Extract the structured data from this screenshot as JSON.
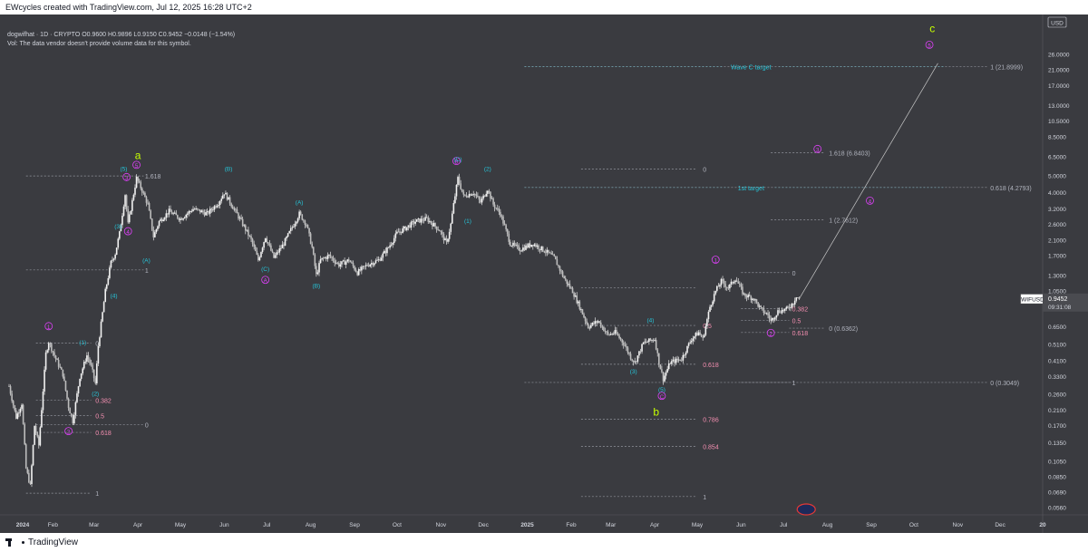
{
  "header": {
    "credit": "EWcycles created with TradingView.com, Jul 12, 2025 16:28 UTC+2"
  },
  "symbol_info": {
    "line1": "dogwifhat · 1D · CRYPTO  O0.9600  H0.9896  L0.9150  C0.9452  −0.0148 (−1.54%)",
    "line2": "Vol: The data vendor doesn't provide volume data for this symbol."
  },
  "footer": {
    "brand": "TradingView"
  },
  "colors": {
    "bg": "#3a3b40",
    "cyan": "#26c6da",
    "magenta": "#e040fb",
    "pink": "#f48fb1",
    "lime": "#c6ff00",
    "fib": "#b0b3bd",
    "candle": "#e6e6e6"
  },
  "chart_data": {
    "type": "candlestick",
    "title": "dogwifhat · 1D · CRYPTO",
    "symbol": "WIFUSD",
    "currency": "USD",
    "y_scale": "log",
    "ylim": [
      0.052,
      34
    ],
    "x_start": "2024-01-01",
    "x_end": "2025-12-31",
    "price_ticks": [
      "26.0000",
      "21.0000",
      "17.0000",
      "13.0000",
      "10.5000",
      "8.5000",
      "6.5000",
      "5.0000",
      "4.0000",
      "3.2000",
      "2.6000",
      "2.1000",
      "1.7000",
      "1.3000",
      "1.0500",
      "0.8500",
      "0.6500",
      "0.5100",
      "0.4100",
      "0.3300",
      "0.2600",
      "0.2100",
      "0.1700",
      "0.1350",
      "0.1050",
      "0.0850",
      "0.0690",
      "0.0560"
    ],
    "x_ticks": [
      {
        "label": "2024",
        "date": "2024-01-01",
        "bold": true
      },
      {
        "label": "Feb",
        "date": "2024-02-01"
      },
      {
        "label": "Mar",
        "date": "2024-03-01"
      },
      {
        "label": "Apr",
        "date": "2024-04-01"
      },
      {
        "label": "May",
        "date": "2024-05-01"
      },
      {
        "label": "Jun",
        "date": "2024-06-01"
      },
      {
        "label": "Jul",
        "date": "2024-07-01"
      },
      {
        "label": "Aug",
        "date": "2024-08-01"
      },
      {
        "label": "Sep",
        "date": "2024-09-01"
      },
      {
        "label": "Oct",
        "date": "2024-10-01"
      },
      {
        "label": "Nov",
        "date": "2024-11-01"
      },
      {
        "label": "Dec",
        "date": "2024-12-01"
      },
      {
        "label": "2025",
        "date": "2025-01-01",
        "bold": true
      },
      {
        "label": "Feb",
        "date": "2025-02-01"
      },
      {
        "label": "Mar",
        "date": "2025-03-01"
      },
      {
        "label": "Apr",
        "date": "2025-04-01"
      },
      {
        "label": "May",
        "date": "2025-05-01"
      },
      {
        "label": "Jun",
        "date": "2025-06-01"
      },
      {
        "label": "Jul",
        "date": "2025-07-01"
      },
      {
        "label": "Aug",
        "date": "2025-08-01"
      },
      {
        "label": "Sep",
        "date": "2025-09-01"
      },
      {
        "label": "Oct",
        "date": "2025-10-01"
      },
      {
        "label": "Nov",
        "date": "2025-11-01"
      },
      {
        "label": "Dec",
        "date": "2025-12-01"
      },
      {
        "label": "20",
        "date": "2025-12-31",
        "bold": true
      }
    ],
    "price_path": [
      [
        "2024-01-01",
        0.29
      ],
      [
        "2024-01-06",
        0.19
      ],
      [
        "2024-01-10",
        0.23
      ],
      [
        "2024-01-13",
        0.095
      ],
      [
        "2024-01-16",
        0.075
      ],
      [
        "2024-01-19",
        0.17
      ],
      [
        "2024-01-22",
        0.13
      ],
      [
        "2024-01-27",
        0.45
      ],
      [
        "2024-01-29",
        0.53
      ],
      [
        "2024-02-03",
        0.42
      ],
      [
        "2024-02-08",
        0.34
      ],
      [
        "2024-02-12",
        0.22
      ],
      [
        "2024-02-15",
        0.18
      ],
      [
        "2024-02-20",
        0.33
      ],
      [
        "2024-02-25",
        0.44
      ],
      [
        "2024-02-28",
        0.38
      ],
      [
        "2024-03-02",
        0.3
      ],
      [
        "2024-03-04",
        0.5
      ],
      [
        "2024-03-09",
        1.05
      ],
      [
        "2024-03-13",
        1.55
      ],
      [
        "2024-03-16",
        1.75
      ],
      [
        "2024-03-19",
        2.3
      ],
      [
        "2024-03-23",
        3.9
      ],
      [
        "2024-03-25",
        2.6
      ],
      [
        "2024-03-31",
        4.85
      ],
      [
        "2024-04-04",
        4.1
      ],
      [
        "2024-04-08",
        3.4
      ],
      [
        "2024-04-12",
        2.2
      ],
      [
        "2024-04-16",
        2.7
      ],
      [
        "2024-04-23",
        3.1
      ],
      [
        "2024-05-01",
        2.8
      ],
      [
        "2024-05-10",
        3.2
      ],
      [
        "2024-05-20",
        3.0
      ],
      [
        "2024-05-28",
        3.5
      ],
      [
        "2024-06-01",
        4.0
      ],
      [
        "2024-06-06",
        3.4
      ],
      [
        "2024-06-13",
        2.7
      ],
      [
        "2024-06-20",
        2.1
      ],
      [
        "2024-06-25",
        1.6
      ],
      [
        "2024-06-30",
        2.2
      ],
      [
        "2024-07-06",
        1.65
      ],
      [
        "2024-07-13",
        2.0
      ],
      [
        "2024-07-19",
        2.5
      ],
      [
        "2024-07-24",
        3.0
      ],
      [
        "2024-07-29",
        2.6
      ],
      [
        "2024-08-02",
        1.9
      ],
      [
        "2024-08-05",
        1.3
      ],
      [
        "2024-08-08",
        1.6
      ],
      [
        "2024-08-14",
        1.7
      ],
      [
        "2024-08-21",
        1.5
      ],
      [
        "2024-08-28",
        1.6
      ],
      [
        "2024-09-03",
        1.35
      ],
      [
        "2024-09-10",
        1.5
      ],
      [
        "2024-09-18",
        1.6
      ],
      [
        "2024-09-25",
        1.9
      ],
      [
        "2024-10-01",
        2.3
      ],
      [
        "2024-10-08",
        2.5
      ],
      [
        "2024-10-14",
        2.7
      ],
      [
        "2024-10-22",
        2.8
      ],
      [
        "2024-10-31",
        2.4
      ],
      [
        "2024-11-05",
        2.0
      ],
      [
        "2024-11-08",
        2.6
      ],
      [
        "2024-11-10",
        3.4
      ],
      [
        "2024-11-13",
        4.85
      ],
      [
        "2024-11-17",
        3.8
      ],
      [
        "2024-11-24",
        4.0
      ],
      [
        "2024-11-29",
        3.5
      ],
      [
        "2024-12-04",
        4.2
      ],
      [
        "2024-12-08",
        3.4
      ],
      [
        "2024-12-13",
        3.0
      ],
      [
        "2024-12-20",
        2.0
      ],
      [
        "2024-12-27",
        1.85
      ],
      [
        "2025-01-05",
        2.0
      ],
      [
        "2025-01-14",
        1.8
      ],
      [
        "2025-01-20",
        1.65
      ],
      [
        "2025-01-27",
        1.25
      ],
      [
        "2025-02-02",
        1.05
      ],
      [
        "2025-02-07",
        0.85
      ],
      [
        "2025-02-13",
        0.65
      ],
      [
        "2025-02-20",
        0.7
      ],
      [
        "2025-02-27",
        0.58
      ],
      [
        "2025-03-04",
        0.6
      ],
      [
        "2025-03-10",
        0.52
      ],
      [
        "2025-03-15",
        0.43
      ],
      [
        "2025-03-18",
        0.4
      ],
      [
        "2025-03-24",
        0.52
      ],
      [
        "2025-04-01",
        0.55
      ],
      [
        "2025-04-04",
        0.4
      ],
      [
        "2025-04-07",
        0.32
      ],
      [
        "2025-04-12",
        0.4
      ],
      [
        "2025-04-20",
        0.42
      ],
      [
        "2025-04-27",
        0.55
      ],
      [
        "2025-05-02",
        0.6
      ],
      [
        "2025-05-05",
        0.55
      ],
      [
        "2025-05-10",
        0.85
      ],
      [
        "2025-05-14",
        1.05
      ],
      [
        "2025-05-18",
        1.2
      ],
      [
        "2025-05-23",
        1.1
      ],
      [
        "2025-05-28",
        1.25
      ],
      [
        "2025-06-03",
        1.0
      ],
      [
        "2025-06-10",
        0.95
      ],
      [
        "2025-06-15",
        0.82
      ],
      [
        "2025-06-20",
        0.76
      ],
      [
        "2025-06-22",
        0.7
      ],
      [
        "2025-06-27",
        0.8
      ],
      [
        "2025-07-03",
        0.82
      ],
      [
        "2025-07-08",
        0.9
      ],
      [
        "2025-07-10",
        0.99
      ],
      [
        "2025-07-12",
        0.945
      ]
    ],
    "last_price": {
      "symbol": "WIFUSD",
      "value": "0.9452",
      "countdown": "09:31:08"
    },
    "projection": [
      [
        "2025-07-12",
        0.945
      ],
      [
        "2025-10-18",
        23.0
      ]
    ],
    "fib_levels": [
      {
        "label": "1.618",
        "price": 5.0,
        "from": "2024-01-13",
        "to": "2024-04-05",
        "label_at": "2024-04-06",
        "color": "fib"
      },
      {
        "label": "1",
        "price": 1.4,
        "from": "2024-01-13",
        "to": "2024-04-05",
        "label_at": "2024-04-06",
        "color": "fib"
      },
      {
        "label": "0",
        "price": 0.52,
        "from": "2024-01-20",
        "to": "2024-02-28",
        "label_at": "2024-03-02",
        "color": "fib"
      },
      {
        "label": "0.382",
        "price": 0.24,
        "from": "2024-01-20",
        "to": "2024-02-28",
        "label_at": "2024-03-02",
        "color": "pink"
      },
      {
        "label": "0.5",
        "price": 0.195,
        "from": "2024-01-20",
        "to": "2024-02-28",
        "label_at": "2024-03-02",
        "color": "pink"
      },
      {
        "label": "0.618",
        "price": 0.155,
        "from": "2024-01-20",
        "to": "2024-02-28",
        "label_at": "2024-03-02",
        "color": "pink"
      },
      {
        "label": "0",
        "price": 0.172,
        "from": "2024-01-20",
        "to": "2024-04-05",
        "label_at": "2024-04-06",
        "color": "fib"
      },
      {
        "label": "1",
        "price": 0.068,
        "from": "2024-01-13",
        "to": "2024-02-28",
        "label_at": "2024-03-02",
        "color": "fib"
      },
      {
        "label": "Wave C target",
        "price": 22.0,
        "from": "2024-12-30",
        "to": "2025-10-22",
        "label_at": "2025-06-08",
        "label_mid": true,
        "color": "cyan"
      },
      {
        "label": "1 (21.8999)",
        "price": 22.0,
        "from": "2024-12-30",
        "to": "2025-11-22",
        "label_at": "2025-11-24",
        "color": "fib"
      },
      {
        "label": "0",
        "price": 5.5,
        "from": "2025-02-08",
        "to": "2025-05-01",
        "label_at": "2025-05-05",
        "color": "fib"
      },
      {
        "label": "1st target",
        "price": 4.28,
        "from": "2024-12-30",
        "to": "2025-10-22",
        "label_at": "2025-06-08",
        "label_mid": true,
        "color": "cyan"
      },
      {
        "label": "0.618 (4.2793)",
        "price": 4.28,
        "from": "2024-12-30",
        "to": "2025-11-22",
        "label_at": "2025-11-24",
        "color": "fib"
      },
      {
        "label": "1.618 (6.8403)",
        "price": 6.84,
        "from": "2025-06-22",
        "to": "2025-07-30",
        "label_at": "2025-08-02",
        "color": "fib"
      },
      {
        "label": "1 (2.7612)",
        "price": 2.76,
        "from": "2025-06-22",
        "to": "2025-07-30",
        "label_at": "2025-08-02",
        "color": "fib"
      },
      {
        "label": "0",
        "price": 1.35,
        "from": "2025-06-01",
        "to": "2025-07-05",
        "label_at": "2025-07-07",
        "color": "fib"
      },
      {
        "label": "0.382",
        "price": 0.83,
        "from": "2025-06-01",
        "to": "2025-07-05",
        "label_at": "2025-07-07",
        "color": "pink"
      },
      {
        "label": "0.5",
        "price": 0.705,
        "from": "2025-06-01",
        "to": "2025-07-05",
        "label_at": "2025-07-07",
        "color": "pink"
      },
      {
        "label": "0.618",
        "price": 0.6,
        "from": "2025-06-01",
        "to": "2025-07-05",
        "label_at": "2025-07-07",
        "color": "pink"
      },
      {
        "label": "0 (0.6362)",
        "price": 0.636,
        "from": "2025-07-05",
        "to": "2025-07-30",
        "label_at": "2025-08-02",
        "color": "fib"
      },
      {
        "label": "1",
        "price": 0.305,
        "from": "2025-06-01",
        "to": "2025-07-05",
        "label_at": "2025-07-07",
        "color": "fib"
      },
      {
        "label": "0 (0.3049)",
        "price": 0.305,
        "from": "2024-12-30",
        "to": "2025-11-22",
        "label_at": "2025-11-24",
        "color": "fib"
      },
      {
        "label": "",
        "price": 1.1,
        "from": "2025-02-08",
        "to": "2025-05-01",
        "label_at": "2025-05-05",
        "color": "fib"
      },
      {
        "label": "0.5",
        "price": 0.66,
        "from": "2025-02-08",
        "to": "2025-05-01",
        "label_at": "2025-05-05",
        "color": "pink"
      },
      {
        "label": "0.618",
        "price": 0.39,
        "from": "2025-02-08",
        "to": "2025-05-01",
        "label_at": "2025-05-05",
        "color": "pink"
      },
      {
        "label": "0.786",
        "price": 0.185,
        "from": "2025-02-08",
        "to": "2025-05-01",
        "label_at": "2025-05-05",
        "color": "pink"
      },
      {
        "label": "0.854",
        "price": 0.128,
        "from": "2025-02-08",
        "to": "2025-05-01",
        "label_at": "2025-05-05",
        "color": "pink"
      },
      {
        "label": "1",
        "price": 0.065,
        "from": "2025-02-08",
        "to": "2025-05-01",
        "label_at": "2025-05-05",
        "color": "fib"
      }
    ],
    "wave_labels": [
      {
        "text": "a",
        "date": "2024-04-01",
        "price": 6.3,
        "style": "big-lime"
      },
      {
        "text": "b",
        "date": "2025-04-02",
        "price": 0.195,
        "style": "big-lime"
      },
      {
        "text": "c",
        "date": "2025-10-14",
        "price": 35.0,
        "style": "big-lime"
      },
      {
        "text": "1",
        "date": "2024-01-29",
        "price": 0.63,
        "style": "circle-magenta"
      },
      {
        "text": "2",
        "date": "2024-02-12",
        "price": 0.152,
        "style": "circle-magenta"
      },
      {
        "text": "3",
        "date": "2024-03-24",
        "price": 4.75,
        "style": "circle-magenta"
      },
      {
        "text": "4",
        "date": "2024-03-25",
        "price": 2.28,
        "style": "circle-magenta"
      },
      {
        "text": "5",
        "date": "2024-03-31",
        "price": 5.6,
        "style": "circle-magenta"
      },
      {
        "text": "A",
        "date": "2024-06-30",
        "price": 1.18,
        "style": "circle-magenta"
      },
      {
        "text": "B",
        "date": "2024-11-12",
        "price": 5.9,
        "style": "circle-magenta"
      },
      {
        "text": "C",
        "date": "2025-04-06",
        "price": 0.245,
        "style": "circle-magenta"
      },
      {
        "text": "1",
        "date": "2025-05-14",
        "price": 1.55,
        "style": "circle-magenta"
      },
      {
        "text": "2",
        "date": "2025-06-22",
        "price": 0.575,
        "style": "circle-magenta"
      },
      {
        "text": "3",
        "date": "2025-07-25",
        "price": 6.95,
        "style": "circle-magenta"
      },
      {
        "text": "4",
        "date": "2025-08-31",
        "price": 3.45,
        "style": "circle-magenta"
      },
      {
        "text": "5",
        "date": "2025-10-12",
        "price": 28.5,
        "style": "circle-magenta"
      },
      {
        "text": "(1)",
        "date": "2024-02-22",
        "price": 0.51,
        "style": "cyan"
      },
      {
        "text": "(2)",
        "date": "2024-03-02",
        "price": 0.255,
        "style": "cyan"
      },
      {
        "text": "(3)",
        "date": "2024-03-18",
        "price": 2.45,
        "style": "cyan"
      },
      {
        "text": "(4)",
        "date": "2024-03-15",
        "price": 0.96,
        "style": "cyan"
      },
      {
        "text": "(5)",
        "date": "2024-03-22",
        "price": 5.35,
        "style": "cyan"
      },
      {
        "text": "(A)",
        "date": "2024-04-07",
        "price": 1.55,
        "style": "cyan"
      },
      {
        "text": "(B)",
        "date": "2024-06-04",
        "price": 5.35,
        "style": "cyan"
      },
      {
        "text": "(C)",
        "date": "2024-06-30",
        "price": 1.38,
        "style": "cyan"
      },
      {
        "text": "(A)",
        "date": "2024-07-24",
        "price": 3.4,
        "style": "cyan"
      },
      {
        "text": "(B)",
        "date": "2024-08-05",
        "price": 1.1,
        "style": "cyan"
      },
      {
        "text": "(C)",
        "date": "2024-11-13",
        "price": 6.1,
        "style": "cyan"
      },
      {
        "text": "(1)",
        "date": "2024-11-20",
        "price": 2.65,
        "style": "cyan"
      },
      {
        "text": "(2)",
        "date": "2024-12-04",
        "price": 5.35,
        "style": "cyan"
      },
      {
        "text": "(3)",
        "date": "2025-03-17",
        "price": 0.345,
        "style": "cyan"
      },
      {
        "text": "(4)",
        "date": "2025-03-29",
        "price": 0.69,
        "style": "cyan"
      },
      {
        "text": "(5)",
        "date": "2025-04-06",
        "price": 0.27,
        "style": "cyan"
      }
    ]
  }
}
